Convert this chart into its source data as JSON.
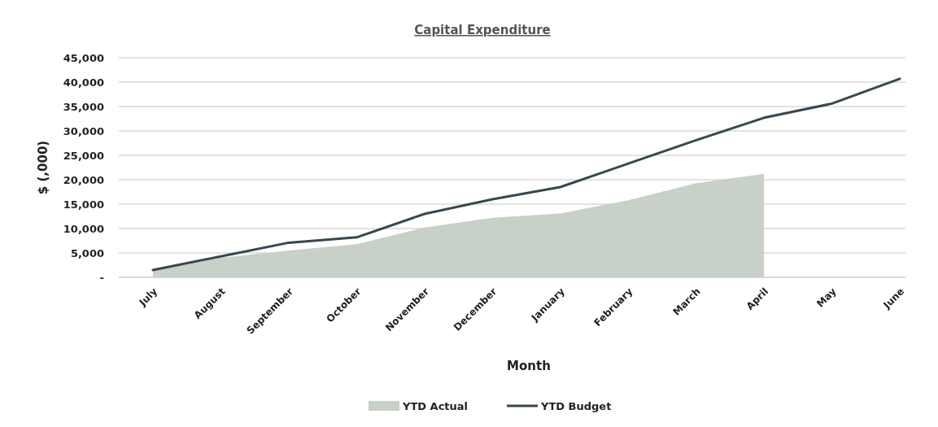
{
  "chart_data": {
    "type": "line",
    "title": "Capital Expenditure",
    "xlabel": "Month",
    "ylabel": "$ (,000)",
    "categories": [
      "July",
      "August",
      "September",
      "October",
      "November",
      "December",
      "January",
      "February",
      "March",
      "April",
      "May",
      "June"
    ],
    "series": [
      {
        "name": "YTD Actual",
        "type": "area",
        "color": "#c8d1c7",
        "values": [
          1500,
          4000,
          5500,
          6800,
          10200,
          12200,
          13100,
          15800,
          19300,
          21200,
          null,
          null
        ]
      },
      {
        "name": "YTD Budget",
        "color": "#37474f",
        "values": [
          1500,
          4300,
          7100,
          8200,
          13000,
          16000,
          18500,
          23300,
          28100,
          32700,
          35600,
          40700
        ]
      }
    ],
    "ylim": [
      0,
      45000
    ],
    "yticks": [
      {
        "value": 0,
        "label": "-"
      },
      {
        "value": 5000,
        "label": "5,000"
      },
      {
        "value": 10000,
        "label": "10,000"
      },
      {
        "value": 15000,
        "label": "15,000"
      },
      {
        "value": 20000,
        "label": "20,000"
      },
      {
        "value": 25000,
        "label": "25,000"
      },
      {
        "value": 30000,
        "label": "30,000"
      },
      {
        "value": 35000,
        "label": "35,000"
      },
      {
        "value": 40000,
        "label": "40,000"
      },
      {
        "value": 45000,
        "label": "45,000"
      }
    ],
    "grid": "y",
    "legend": "bottom",
    "marker": "none",
    "line_style": "solid"
  }
}
